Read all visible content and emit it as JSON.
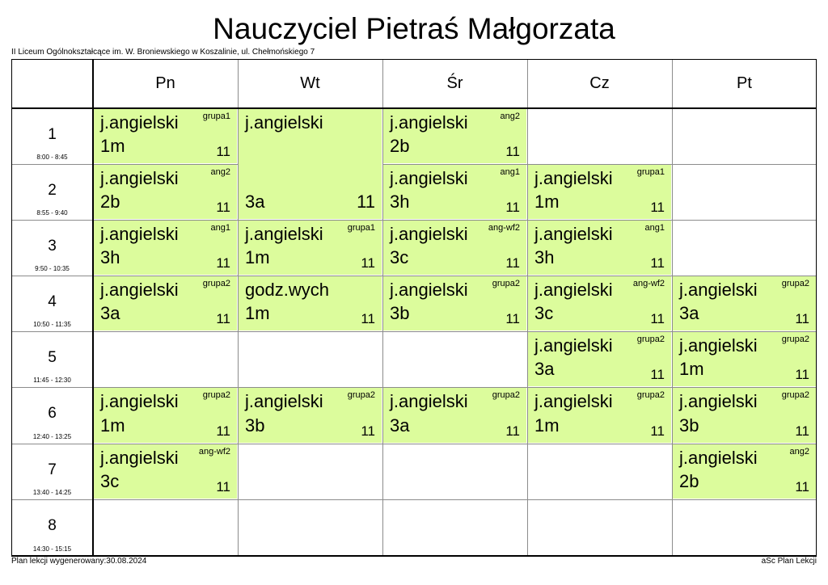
{
  "title": "Nauczyciel Pietraś Małgorzata",
  "school": "II Liceum Ogólnokształcące im. W. Broniewskiego w Koszalinie, ul. Chełmońskiego 7",
  "generated": "Plan lekcji wygenerowany:30.08.2024",
  "app": "aSc Plan Lekcji",
  "lesson_color": "#dcfc9c",
  "days": [
    "Pn",
    "Wt",
    "Śr",
    "Cz",
    "Pt"
  ],
  "periods": [
    {
      "num": "1",
      "time": "8:00 - 8:45"
    },
    {
      "num": "2",
      "time": "8:55 - 9:40"
    },
    {
      "num": "3",
      "time": "9:50 - 10:35"
    },
    {
      "num": "4",
      "time": "10:50 - 11:35"
    },
    {
      "num": "5",
      "time": "11:45 - 12:30"
    },
    {
      "num": "6",
      "time": "12:40 - 13:25"
    },
    {
      "num": "7",
      "time": "13:40 - 14:25"
    },
    {
      "num": "8",
      "time": "14:30 - 15:15"
    }
  ],
  "lessons": [
    {
      "day": 0,
      "period": 0,
      "span": 1,
      "subject": "j.angielski",
      "group": "grupa1",
      "class": "1m",
      "room": "11"
    },
    {
      "day": 0,
      "period": 1,
      "span": 1,
      "subject": "j.angielski",
      "group": "ang2",
      "class": "2b",
      "room": "11"
    },
    {
      "day": 0,
      "period": 2,
      "span": 1,
      "subject": "j.angielski",
      "group": "ang1",
      "class": "3h",
      "room": "11"
    },
    {
      "day": 0,
      "period": 3,
      "span": 1,
      "subject": "j.angielski",
      "group": "grupa2",
      "class": "3a",
      "room": "11"
    },
    {
      "day": 0,
      "period": 5,
      "span": 1,
      "subject": "j.angielski",
      "group": "grupa2",
      "class": "1m",
      "room": "11"
    },
    {
      "day": 0,
      "period": 6,
      "span": 1,
      "subject": "j.angielski",
      "group": "ang-wf2",
      "class": "3c",
      "room": "11"
    },
    {
      "day": 1,
      "period": 0,
      "span": 2,
      "subject": "j.angielski",
      "group": "",
      "class": "3a",
      "room": "11"
    },
    {
      "day": 1,
      "period": 2,
      "span": 1,
      "subject": "j.angielski",
      "group": "grupa1",
      "class": "1m",
      "room": "11"
    },
    {
      "day": 1,
      "period": 3,
      "span": 1,
      "subject": "godz.wych",
      "group": "",
      "class": "1m",
      "room": "11"
    },
    {
      "day": 1,
      "period": 5,
      "span": 1,
      "subject": "j.angielski",
      "group": "grupa2",
      "class": "3b",
      "room": "11"
    },
    {
      "day": 2,
      "period": 0,
      "span": 1,
      "subject": "j.angielski",
      "group": "ang2",
      "class": "2b",
      "room": "11"
    },
    {
      "day": 2,
      "period": 1,
      "span": 1,
      "subject": "j.angielski",
      "group": "ang1",
      "class": "3h",
      "room": "11"
    },
    {
      "day": 2,
      "period": 2,
      "span": 1,
      "subject": "j.angielski",
      "group": "ang-wf2",
      "class": "3c",
      "room": "11"
    },
    {
      "day": 2,
      "period": 3,
      "span": 1,
      "subject": "j.angielski",
      "group": "grupa2",
      "class": "3b",
      "room": "11"
    },
    {
      "day": 2,
      "period": 5,
      "span": 1,
      "subject": "j.angielski",
      "group": "grupa2",
      "class": "3a",
      "room": "11"
    },
    {
      "day": 3,
      "period": 1,
      "span": 1,
      "subject": "j.angielski",
      "group": "grupa1",
      "class": "1m",
      "room": "11"
    },
    {
      "day": 3,
      "period": 2,
      "span": 1,
      "subject": "j.angielski",
      "group": "ang1",
      "class": "3h",
      "room": "11"
    },
    {
      "day": 3,
      "period": 3,
      "span": 1,
      "subject": "j.angielski",
      "group": "ang-wf2",
      "class": "3c",
      "room": "11"
    },
    {
      "day": 3,
      "period": 4,
      "span": 1,
      "subject": "j.angielski",
      "group": "grupa2",
      "class": "3a",
      "room": "11"
    },
    {
      "day": 3,
      "period": 5,
      "span": 1,
      "subject": "j.angielski",
      "group": "grupa2",
      "class": "1m",
      "room": "11"
    },
    {
      "day": 4,
      "period": 3,
      "span": 1,
      "subject": "j.angielski",
      "group": "grupa2",
      "class": "3a",
      "room": "11"
    },
    {
      "day": 4,
      "period": 4,
      "span": 1,
      "subject": "j.angielski",
      "group": "grupa2",
      "class": "1m",
      "room": "11"
    },
    {
      "day": 4,
      "period": 5,
      "span": 1,
      "subject": "j.angielski",
      "group": "grupa2",
      "class": "3b",
      "room": "11"
    },
    {
      "day": 4,
      "period": 6,
      "span": 1,
      "subject": "j.angielski",
      "group": "ang2",
      "class": "2b",
      "room": "11"
    }
  ]
}
